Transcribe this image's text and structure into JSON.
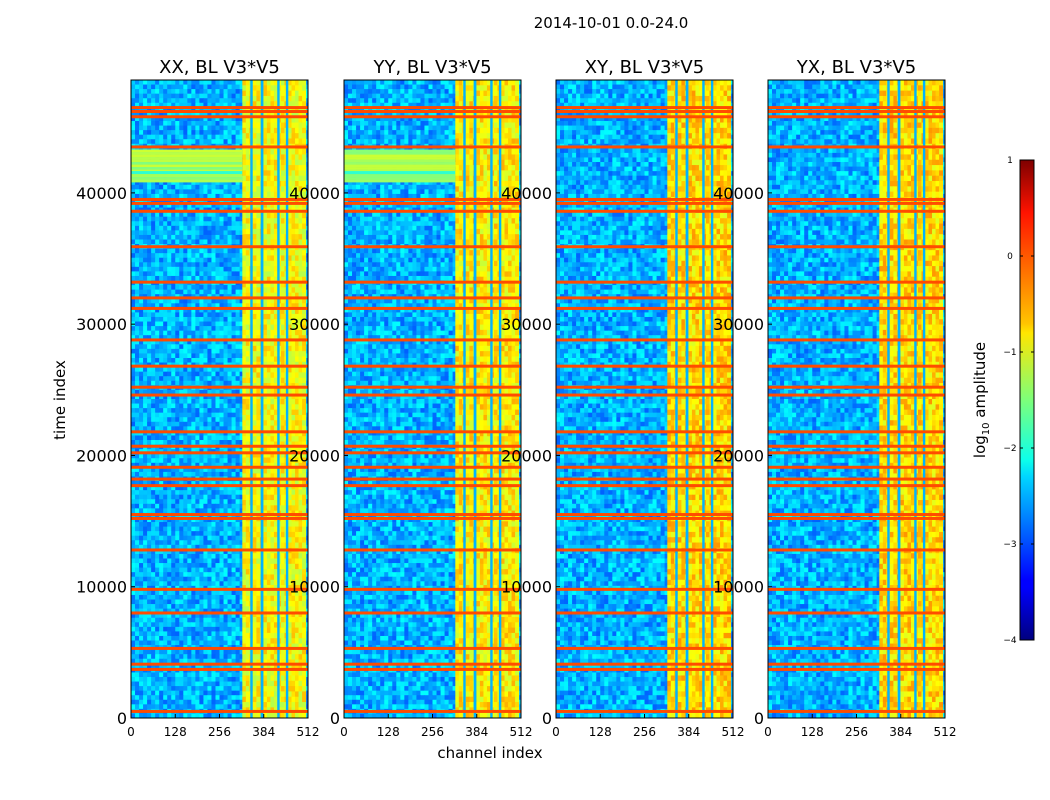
{
  "figure": {
    "title": "2014-10-01 0.0-24.0",
    "ylabel": "time index",
    "xlabel": "channel index"
  },
  "colorbar": {
    "label_prefix": "log",
    "label_sub": "10",
    "label_suffix": " amplitude",
    "range": [
      -4,
      1
    ],
    "ticks": [
      1,
      0,
      -1,
      -2,
      -3,
      -4
    ],
    "tick_labels": [
      "1",
      "0",
      "−1",
      "−2",
      "−3",
      "−4"
    ],
    "colormap": "jet"
  },
  "chart_data": {
    "type": "heatmap",
    "title": "2014-10-01 0.0-24.0",
    "xlabel": "channel index",
    "ylabel": "time index",
    "xlim": [
      0,
      512
    ],
    "ylim": [
      0,
      48600
    ],
    "x_ticks": [
      0,
      128,
      256,
      384,
      512
    ],
    "x_tick_labels": [
      "0",
      "128",
      "256",
      "384",
      "512"
    ],
    "y_ticks": [
      0,
      10000,
      20000,
      30000,
      40000
    ],
    "y_tick_labels": [
      "0",
      "10000",
      "20000",
      "30000",
      "40000"
    ],
    "value_label": "log10 amplitude",
    "value_range": [
      -4,
      1
    ],
    "panels": [
      {
        "name": "XX, BL V3*V5",
        "band_channels": [
          322,
          505
        ],
        "band_base": 0.62,
        "saturated_rows": [
          40900,
          43300
        ]
      },
      {
        "name": "YY, BL V3*V5",
        "band_channels": [
          322,
          505
        ],
        "band_base": 0.64,
        "saturated_rows": [
          40900,
          43300
        ]
      },
      {
        "name": "XY, BL V3*V5",
        "band_channels": [
          322,
          505
        ],
        "band_base": 0.66,
        "saturated_rows": []
      },
      {
        "name": "YX, BL V3*V5",
        "band_channels": [
          322,
          505
        ],
        "band_base": 0.66,
        "saturated_rows": []
      }
    ],
    "gap_channels": [
      [
        345,
        352
      ],
      [
        375,
        383
      ],
      [
        423,
        430
      ],
      [
        448,
        455
      ]
    ],
    "flagged_rows": [
      500,
      3700,
      4100,
      5300,
      8000,
      9800,
      12800,
      15200,
      15500,
      17700,
      18200,
      19100,
      20200,
      20700,
      21800,
      24600,
      25200,
      26800,
      28800,
      31200,
      32000,
      33200,
      35900,
      38600,
      39200,
      39500,
      43500,
      45800,
      46200,
      46500
    ]
  }
}
